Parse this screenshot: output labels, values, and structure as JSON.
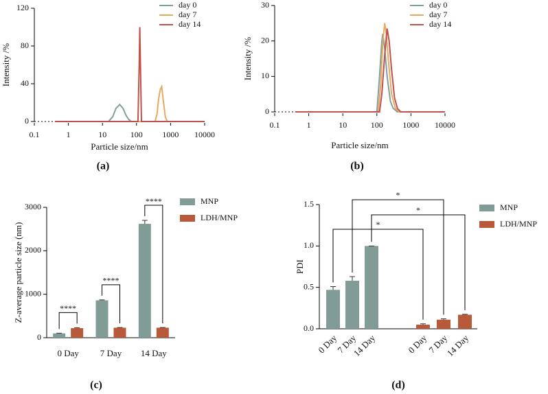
{
  "chart_data": [
    {
      "type": "line",
      "xlabel": "Particle size/nm",
      "ylabel": "Intensity /%",
      "caption": "(a)",
      "xscale": "log",
      "xlim": [
        0.1,
        10000
      ],
      "xticks": [
        0.1,
        1,
        10,
        100,
        1000,
        10000
      ],
      "ylim": [
        0,
        120
      ],
      "yticks": [
        0,
        40,
        80,
        120
      ],
      "series": [
        {
          "name": "day 0",
          "color": "#7f9f9a",
          "x": [
            0.4,
            15,
            20,
            25,
            32,
            40,
            50,
            60,
            70,
            10000
          ],
          "values": [
            0,
            0,
            5,
            14,
            18,
            14,
            6,
            2,
            0,
            0
          ]
        },
        {
          "name": "day 7",
          "color": "#e9a860",
          "x": [
            0.4,
            350,
            400,
            450,
            500,
            550,
            600,
            700,
            800,
            10000
          ],
          "values": [
            0,
            0,
            8,
            25,
            34,
            37,
            25,
            5,
            0,
            0
          ]
        },
        {
          "name": "day 14",
          "color": "#c2504a",
          "x": [
            0.4,
            110,
            120,
            125,
            130,
            140,
            10000
          ],
          "values": [
            0,
            0,
            60,
            100,
            60,
            0,
            0
          ]
        }
      ]
    },
    {
      "type": "line",
      "xlabel": "Particle size/nm",
      "ylabel": "Intensity /%",
      "caption": "(b)",
      "xscale": "log",
      "xlim": [
        0.1,
        10000
      ],
      "xticks": [
        0.1,
        1,
        10,
        100,
        1000,
        10000
      ],
      "ylim": [
        0,
        30
      ],
      "yticks": [
        0,
        10,
        20,
        30
      ],
      "series": [
        {
          "name": "day 0",
          "color": "#7f9f9a",
          "x": [
            0.4,
            100,
            120,
            140,
            150,
            170,
            200,
            250,
            300,
            400,
            10000
          ],
          "values": [
            0,
            0,
            10,
            20,
            22,
            18,
            10,
            3,
            1,
            0,
            0
          ]
        },
        {
          "name": "day 7",
          "color": "#e9a860",
          "x": [
            0.4,
            110,
            130,
            150,
            170,
            190,
            220,
            270,
            350,
            450,
            10000
          ],
          "values": [
            0,
            0,
            8,
            20,
            25,
            22,
            14,
            5,
            1,
            0,
            0
          ]
        },
        {
          "name": "day 14",
          "color": "#c2504a",
          "x": [
            0.4,
            120,
            140,
            170,
            200,
            230,
            270,
            330,
            400,
            500,
            10000
          ],
          "values": [
            0,
            0,
            5,
            16,
            23.5,
            20,
            12,
            4,
            1,
            0,
            0
          ]
        }
      ]
    },
    {
      "type": "bar",
      "ylabel": "Z-average  particle size (nm)",
      "caption": "(c)",
      "categories": [
        "0 Day",
        "7 Day",
        "14 Day"
      ],
      "ylim": [
        0,
        3000
      ],
      "yticks": [
        0,
        1000,
        2000,
        3000
      ],
      "annotations": [
        "****",
        "****",
        "****"
      ],
      "series": [
        {
          "name": "MNP",
          "color": "#819b96",
          "values": [
            100,
            860,
            2620
          ],
          "errors": [
            5,
            10,
            80
          ]
        },
        {
          "name": "LDH/MNP",
          "color": "#b85a3a",
          "values": [
            220,
            230,
            230
          ],
          "errors": [
            10,
            5,
            5
          ]
        }
      ]
    },
    {
      "type": "bar-split",
      "ylabel": "PDI",
      "caption": "(d)",
      "ylim": [
        0,
        1.5
      ],
      "yticks": [
        {
          "value": 0,
          "label": "0.0"
        },
        0.5,
        {
          "value": 1,
          "label": "1.0"
        },
        1.5
      ],
      "annotations": [
        "*",
        "*",
        "*"
      ],
      "series": [
        {
          "name": "MNP",
          "color": "#819b96",
          "categories": [
            "0 Day",
            "7 Day",
            "14 Day"
          ],
          "values": [
            0.47,
            0.58,
            1.0
          ],
          "errors": [
            0.04,
            0.05,
            0
          ]
        },
        {
          "name": "LDH/MNP",
          "color": "#b85a3a",
          "categories": [
            "0 Day",
            "7 Day",
            "14 Day"
          ],
          "values": [
            0.05,
            0.11,
            0.17
          ],
          "errors": [
            0.01,
            0.01,
            0.005
          ]
        }
      ]
    }
  ]
}
